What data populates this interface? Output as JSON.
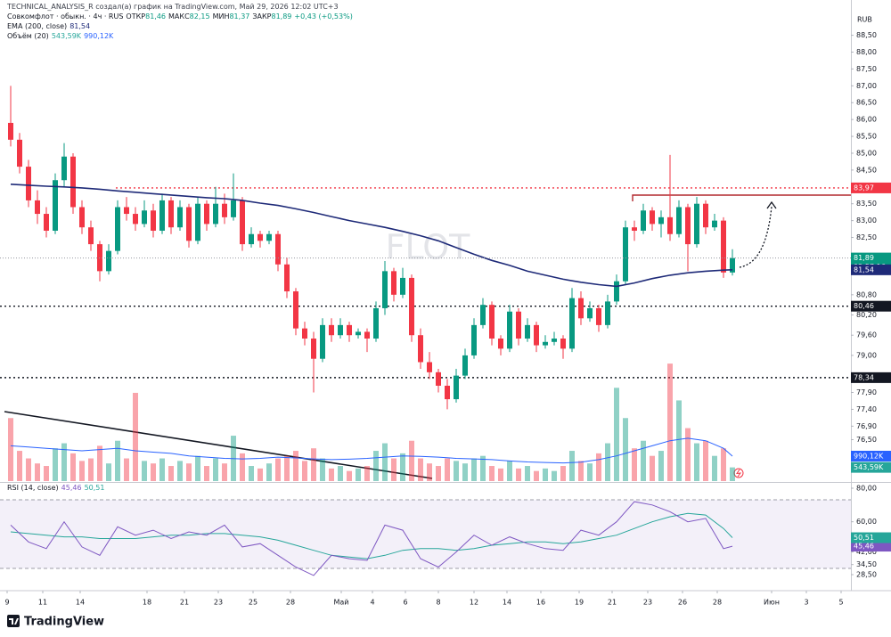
{
  "header": {
    "author_line": "TECHNICAL_ANALYSIS_R создал(а) график на TradingView.com, Май 29, 2026 12:02 UTC+3"
  },
  "footer": {
    "brand": "TradingView"
  },
  "chart_data": [
    {
      "type": "candlestick",
      "title": "Совкомфлот · обыкн. · 4ч · RUS",
      "ohlc_legend": [
        {
          "name": "ОТКР",
          "value_label": "81,46"
        },
        {
          "name": "МАКС",
          "value_label": "82,15"
        },
        {
          "name": "МИН",
          "value_label": "81,37"
        },
        {
          "name": "ЗАКР",
          "value_label": "81,89"
        }
      ],
      "change_label": "+0,43 (+0,53%)",
      "currency": "RUB",
      "watermark": "FLOT",
      "up_color": "#089981",
      "down_color": "#f23645",
      "xlim": [
        -1.2,
        94.3
      ],
      "xticks": [
        {
          "value": -0.4,
          "label": "9"
        },
        {
          "value": 3.6,
          "label": "11"
        },
        {
          "value": 7.8,
          "label": "14"
        },
        {
          "value": 15.3,
          "label": "18"
        },
        {
          "value": 19.5,
          "label": "21"
        },
        {
          "value": 23.3,
          "label": "23"
        },
        {
          "value": 27.2,
          "label": "25"
        },
        {
          "value": 31.4,
          "label": "28"
        },
        {
          "value": 37.1,
          "label": "Май"
        },
        {
          "value": 40.6,
          "label": "4"
        },
        {
          "value": 44.3,
          "label": "6"
        },
        {
          "value": 48,
          "label": "8"
        },
        {
          "value": 52,
          "label": "12"
        },
        {
          "value": 55.7,
          "label": "14"
        },
        {
          "value": 59.5,
          "label": "16"
        },
        {
          "value": 63.8,
          "label": "19"
        },
        {
          "value": 67.5,
          "label": "21"
        },
        {
          "value": 71.5,
          "label": "23"
        },
        {
          "value": 75.4,
          "label": "26"
        },
        {
          "value": 79.3,
          "label": "28"
        },
        {
          "value": 85.4,
          "label": "Июн"
        },
        {
          "value": 89.3,
          "label": "3"
        },
        {
          "value": 93.2,
          "label": "5"
        }
      ],
      "ylim": [
        75.27,
        89.15
      ],
      "yticks": [
        {
          "value": 88.5,
          "label": "88,50"
        },
        {
          "value": 88,
          "label": "88,00"
        },
        {
          "value": 87.5,
          "label": "87,50"
        },
        {
          "value": 87,
          "label": "87,00"
        },
        {
          "value": 86.5,
          "label": "86,50"
        },
        {
          "value": 86,
          "label": "86,00"
        },
        {
          "value": 85.5,
          "label": "85,50"
        },
        {
          "value": 85,
          "label": "85,00"
        },
        {
          "value": 84.5,
          "label": "84,50"
        },
        {
          "value": 83.5,
          "label": "83,50"
        },
        {
          "value": 83,
          "label": "83,00"
        },
        {
          "value": 82.5,
          "label": "82,50"
        },
        {
          "value": 80.8,
          "label": "80,80"
        },
        {
          "value": 80.2,
          "label": "80,20"
        },
        {
          "value": 79.6,
          "label": "79,60"
        },
        {
          "value": 79,
          "label": "79,00"
        },
        {
          "value": 77.9,
          "label": "77,90"
        },
        {
          "value": 77.4,
          "label": "77,40"
        },
        {
          "value": 76.9,
          "label": "76,90"
        },
        {
          "value": 76.5,
          "label": "76,50"
        }
      ],
      "candles": [
        [
          85.9,
          87.0,
          85.2,
          85.4
        ],
        [
          85.4,
          85.6,
          84.4,
          84.6
        ],
        [
          84.6,
          84.8,
          83.4,
          83.6
        ],
        [
          83.6,
          83.9,
          82.9,
          83.2
        ],
        [
          83.2,
          83.4,
          82.5,
          82.7
        ],
        [
          82.7,
          84.4,
          82.6,
          84.2
        ],
        [
          84.2,
          85.3,
          84.0,
          84.9
        ],
        [
          84.9,
          85.0,
          83.2,
          83.4
        ],
        [
          83.4,
          83.6,
          82.6,
          82.8
        ],
        [
          82.8,
          83.0,
          82.1,
          82.3
        ],
        [
          82.3,
          82.4,
          81.2,
          81.5
        ],
        [
          81.5,
          82.3,
          81.4,
          82.1
        ],
        [
          82.1,
          83.6,
          82.0,
          83.4
        ],
        [
          83.4,
          83.7,
          83.0,
          83.2
        ],
        [
          83.2,
          83.4,
          82.7,
          82.9
        ],
        [
          82.9,
          83.6,
          82.8,
          83.3
        ],
        [
          83.3,
          83.5,
          82.5,
          82.7
        ],
        [
          82.7,
          83.8,
          82.6,
          83.6
        ],
        [
          83.6,
          83.7,
          82.6,
          82.8
        ],
        [
          82.8,
          83.6,
          82.7,
          83.4
        ],
        [
          83.4,
          83.5,
          82.2,
          82.4
        ],
        [
          82.4,
          83.7,
          82.3,
          83.5
        ],
        [
          83.5,
          83.6,
          82.7,
          82.9
        ],
        [
          82.9,
          84.0,
          82.8,
          83.5
        ],
        [
          83.5,
          83.8,
          82.9,
          83.1
        ],
        [
          83.1,
          84.4,
          83.0,
          83.6
        ],
        [
          83.6,
          83.7,
          82.1,
          82.3
        ],
        [
          82.3,
          82.8,
          82.2,
          82.6
        ],
        [
          82.6,
          82.7,
          82.2,
          82.4
        ],
        [
          82.4,
          82.7,
          82.3,
          82.6
        ],
        [
          82.6,
          82.7,
          81.5,
          81.7
        ],
        [
          81.7,
          81.9,
          80.7,
          80.9
        ],
        [
          80.9,
          81.0,
          79.6,
          79.8
        ],
        [
          79.8,
          80.0,
          79.3,
          79.5
        ],
        [
          79.5,
          79.7,
          77.9,
          78.9
        ],
        [
          78.9,
          80.1,
          78.8,
          79.9
        ],
        [
          79.9,
          80.1,
          79.4,
          79.6
        ],
        [
          79.6,
          80.1,
          79.5,
          79.9
        ],
        [
          79.9,
          80.0,
          79.4,
          79.6
        ],
        [
          79.6,
          79.8,
          79.5,
          79.7
        ],
        [
          79.7,
          79.8,
          79.1,
          79.5
        ],
        [
          79.5,
          80.6,
          79.4,
          80.4
        ],
        [
          80.4,
          81.8,
          80.2,
          81.5
        ],
        [
          81.5,
          81.6,
          80.6,
          80.8
        ],
        [
          80.8,
          81.6,
          80.7,
          81.3
        ],
        [
          81.3,
          81.4,
          79.4,
          79.6
        ],
        [
          79.6,
          79.8,
          78.6,
          78.8
        ],
        [
          78.8,
          79.1,
          78.3,
          78.5
        ],
        [
          78.5,
          78.6,
          77.9,
          78.1
        ],
        [
          78.1,
          78.3,
          77.4,
          77.7
        ],
        [
          77.7,
          78.6,
          77.6,
          78.4
        ],
        [
          78.4,
          79.2,
          78.3,
          79.0
        ],
        [
          79.0,
          80.1,
          78.9,
          79.9
        ],
        [
          79.9,
          80.7,
          79.8,
          80.5
        ],
        [
          80.5,
          80.6,
          79.3,
          79.5
        ],
        [
          79.5,
          79.6,
          79.0,
          79.2
        ],
        [
          79.2,
          80.5,
          79.1,
          80.3
        ],
        [
          80.3,
          80.4,
          79.3,
          79.5
        ],
        [
          79.5,
          80.1,
          79.4,
          79.9
        ],
        [
          79.9,
          80.0,
          79.1,
          79.3
        ],
        [
          79.3,
          79.6,
          79.2,
          79.4
        ],
        [
          79.4,
          79.7,
          79.3,
          79.5
        ],
        [
          79.5,
          79.6,
          78.9,
          79.2
        ],
        [
          79.2,
          81.0,
          79.1,
          80.7
        ],
        [
          80.7,
          80.9,
          79.9,
          80.1
        ],
        [
          80.1,
          80.6,
          80.0,
          80.4
        ],
        [
          80.4,
          80.5,
          79.7,
          79.9
        ],
        [
          79.9,
          80.8,
          79.8,
          80.6
        ],
        [
          80.6,
          81.4,
          80.5,
          81.2
        ],
        [
          81.2,
          83.0,
          81.1,
          82.8
        ],
        [
          82.8,
          83.0,
          82.4,
          82.7
        ],
        [
          82.7,
          83.5,
          82.6,
          83.3
        ],
        [
          83.3,
          83.4,
          82.7,
          82.9
        ],
        [
          82.9,
          83.3,
          82.5,
          83.1
        ],
        [
          83.1,
          84.95,
          82.4,
          82.6
        ],
        [
          82.6,
          83.6,
          82.5,
          83.4
        ],
        [
          83.4,
          83.5,
          81.5,
          82.3
        ],
        [
          82.3,
          83.7,
          82.2,
          83.5
        ],
        [
          83.5,
          83.6,
          82.6,
          82.8
        ],
        [
          82.8,
          83.2,
          82.7,
          83.0
        ],
        [
          83.0,
          83.1,
          81.3,
          81.46
        ],
        [
          81.46,
          82.15,
          81.37,
          81.89
        ]
      ],
      "last_price_label": "81,89",
      "countdown": "02:57:16",
      "levels": [
        {
          "value": 83.97,
          "label": "83,97",
          "color": "#f23645"
        },
        {
          "value": 80.46,
          "label": "80,46",
          "color": "#131722"
        },
        {
          "value": 78.34,
          "label": "78,34",
          "color": "#131722"
        }
      ],
      "line_x": [
        0,
        2,
        4,
        6,
        8,
        10,
        12,
        14,
        16,
        18,
        20,
        22,
        24,
        26,
        28,
        30,
        32,
        34,
        36,
        38,
        40,
        42,
        44,
        46,
        48,
        50,
        52,
        54,
        56,
        58,
        60,
        62,
        64,
        66,
        68,
        70,
        72,
        74,
        76,
        78,
        80,
        81
      ],
      "series": [
        {
          "name": "EMA (200, close)",
          "color": "#1e2a78",
          "values": [
            84.08,
            84.05,
            84.02,
            84.0,
            83.97,
            83.93,
            83.88,
            83.84,
            83.8,
            83.76,
            83.72,
            83.68,
            83.65,
            83.6,
            83.52,
            83.45,
            83.35,
            83.24,
            83.12,
            83.0,
            82.9,
            82.8,
            82.68,
            82.55,
            82.4,
            82.2,
            82.0,
            81.82,
            81.67,
            81.5,
            81.38,
            81.26,
            81.17,
            81.1,
            81.05,
            81.15,
            81.28,
            81.38,
            81.45,
            81.5,
            81.53,
            81.54
          ],
          "last_label": "81,54"
        }
      ],
      "volume": {
        "name": "Объём (20)",
        "ylim": [
          0,
          18550
        ],
        "up_color": "rgba(8,153,129,0.45)",
        "down_color": "rgba(242,54,69,0.45)",
        "values": [
          2500,
          1200,
          900,
          700,
          600,
          1300,
          1500,
          1100,
          800,
          900,
          1400,
          700,
          1600,
          900,
          3500,
          800,
          700,
          900,
          600,
          800,
          700,
          1000,
          600,
          900,
          700,
          1800,
          1100,
          600,
          500,
          700,
          900,
          1000,
          1200,
          800,
          1300,
          900,
          500,
          600,
          400,
          500,
          600,
          1200,
          1500,
          900,
          1100,
          1600,
          900,
          700,
          600,
          900,
          800,
          700,
          900,
          1000,
          600,
          500,
          800,
          500,
          600,
          400,
          500,
          400,
          600,
          1200,
          800,
          700,
          1100,
          1500,
          3700,
          2500,
          1300,
          1600,
          1000,
          1200,
          4660,
          3200,
          2100,
          1500,
          1600,
          1000,
          1300,
          543.59
        ],
        "last_label": "543,59K",
        "last_color": "#26a69a",
        "ma_color": "#2962ff",
        "ma_values": [
          1400,
          1350,
          1300,
          1250,
          1200,
          1250,
          1300,
          1200,
          1150,
          1100,
          1000,
          950,
          900,
          880,
          900,
          950,
          920,
          880,
          850,
          870,
          900,
          950,
          1000,
          980,
          950,
          900,
          880,
          850,
          800,
          760,
          740,
          720,
          750,
          850,
          1000,
          1200,
          1400,
          1600,
          1700,
          1600,
          1300,
          990.12
        ],
        "ma_label": "990,12K"
      }
    },
    {
      "type": "line",
      "title": "RSI (14, close)",
      "ylim": [
        20.53,
        82.66
      ],
      "yticks": [
        {
          "value": 80,
          "label": "80,00"
        },
        {
          "value": 60,
          "label": "60,00"
        },
        {
          "value": 42,
          "label": "42,00"
        },
        {
          "value": 34.5,
          "label": "34,50"
        },
        {
          "value": 28.5,
          "label": "28,50"
        }
      ],
      "line_x": [
        0,
        2,
        4,
        6,
        8,
        10,
        12,
        14,
        16,
        18,
        20,
        22,
        24,
        26,
        28,
        30,
        32,
        34,
        36,
        38,
        40,
        42,
        44,
        46,
        48,
        50,
        52,
        54,
        56,
        58,
        60,
        62,
        64,
        66,
        68,
        70,
        72,
        74,
        76,
        78,
        80,
        81
      ],
      "series": [
        {
          "color": "#7e57c2",
          "values": [
            58,
            48,
            44,
            60,
            45,
            40,
            57,
            52,
            55,
            50,
            54,
            52,
            58,
            45,
            47,
            40,
            33,
            28,
            40,
            38,
            37,
            58,
            55,
            38,
            33,
            42,
            52,
            46,
            51,
            47,
            44,
            43,
            55,
            52,
            60,
            72,
            70,
            66,
            60,
            62,
            44,
            45.46
          ],
          "last_label": "45,46"
        },
        {
          "color": "#26a69a",
          "values": [
            54,
            53,
            52,
            51,
            51,
            50,
            50,
            50,
            51,
            52,
            52,
            53,
            53,
            52,
            51,
            49,
            46,
            43,
            40,
            39,
            38,
            40,
            43,
            44,
            44,
            43,
            44,
            46,
            47,
            48,
            48,
            47,
            48,
            50,
            52,
            56,
            60,
            63,
            65,
            64,
            56,
            50.51
          ],
          "last_label": "50,51"
        }
      ]
    }
  ]
}
